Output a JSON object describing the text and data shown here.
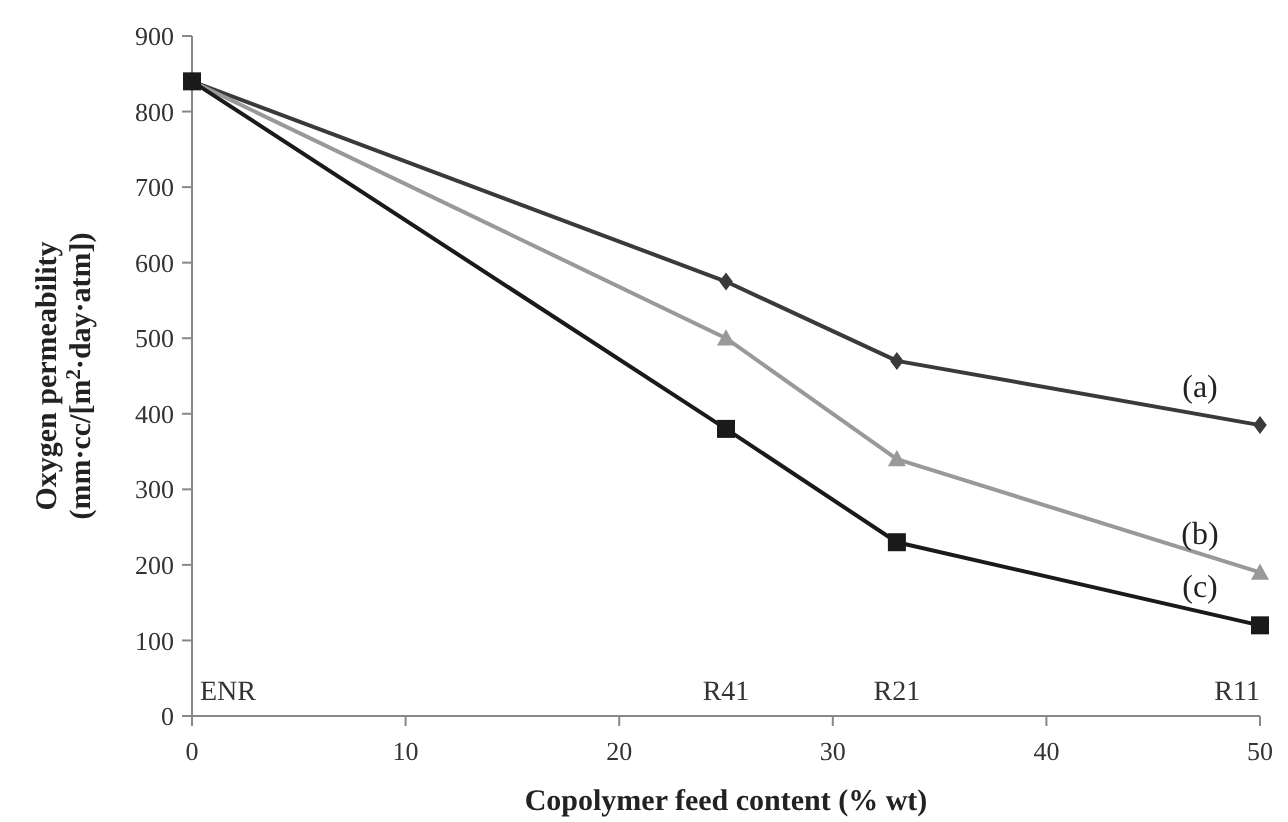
{
  "chart_data": {
    "type": "line",
    "xlabel": "Copolymer feed content (% wt)",
    "ylabel": "Oxygen permeability\n(mm·cc/[m$^{2}$·day·atm])",
    "x": [
      0,
      25,
      33,
      50
    ],
    "series": [
      {
        "name": "(a)",
        "color": "#3a3a3a",
        "marker": "diamond",
        "values": [
          840,
          575,
          470,
          385
        ]
      },
      {
        "name": "(b)",
        "color": "#999999",
        "marker": "triangle",
        "values": [
          840,
          500,
          340,
          190
        ]
      },
      {
        "name": "(c)",
        "color": "#1a1a1a",
        "marker": "square",
        "values": [
          840,
          380,
          230,
          120
        ]
      }
    ],
    "xlim": [
      0,
      50
    ],
    "xticks": [
      0,
      10,
      20,
      30,
      40,
      50
    ],
    "ylim": [
      0,
      900
    ],
    "yticks": [
      0,
      100,
      200,
      300,
      400,
      500,
      600,
      700,
      800,
      900
    ],
    "annotations": [
      "ENR",
      "R41",
      "R21",
      "R11"
    ],
    "grid": false,
    "line_style": "solid"
  }
}
